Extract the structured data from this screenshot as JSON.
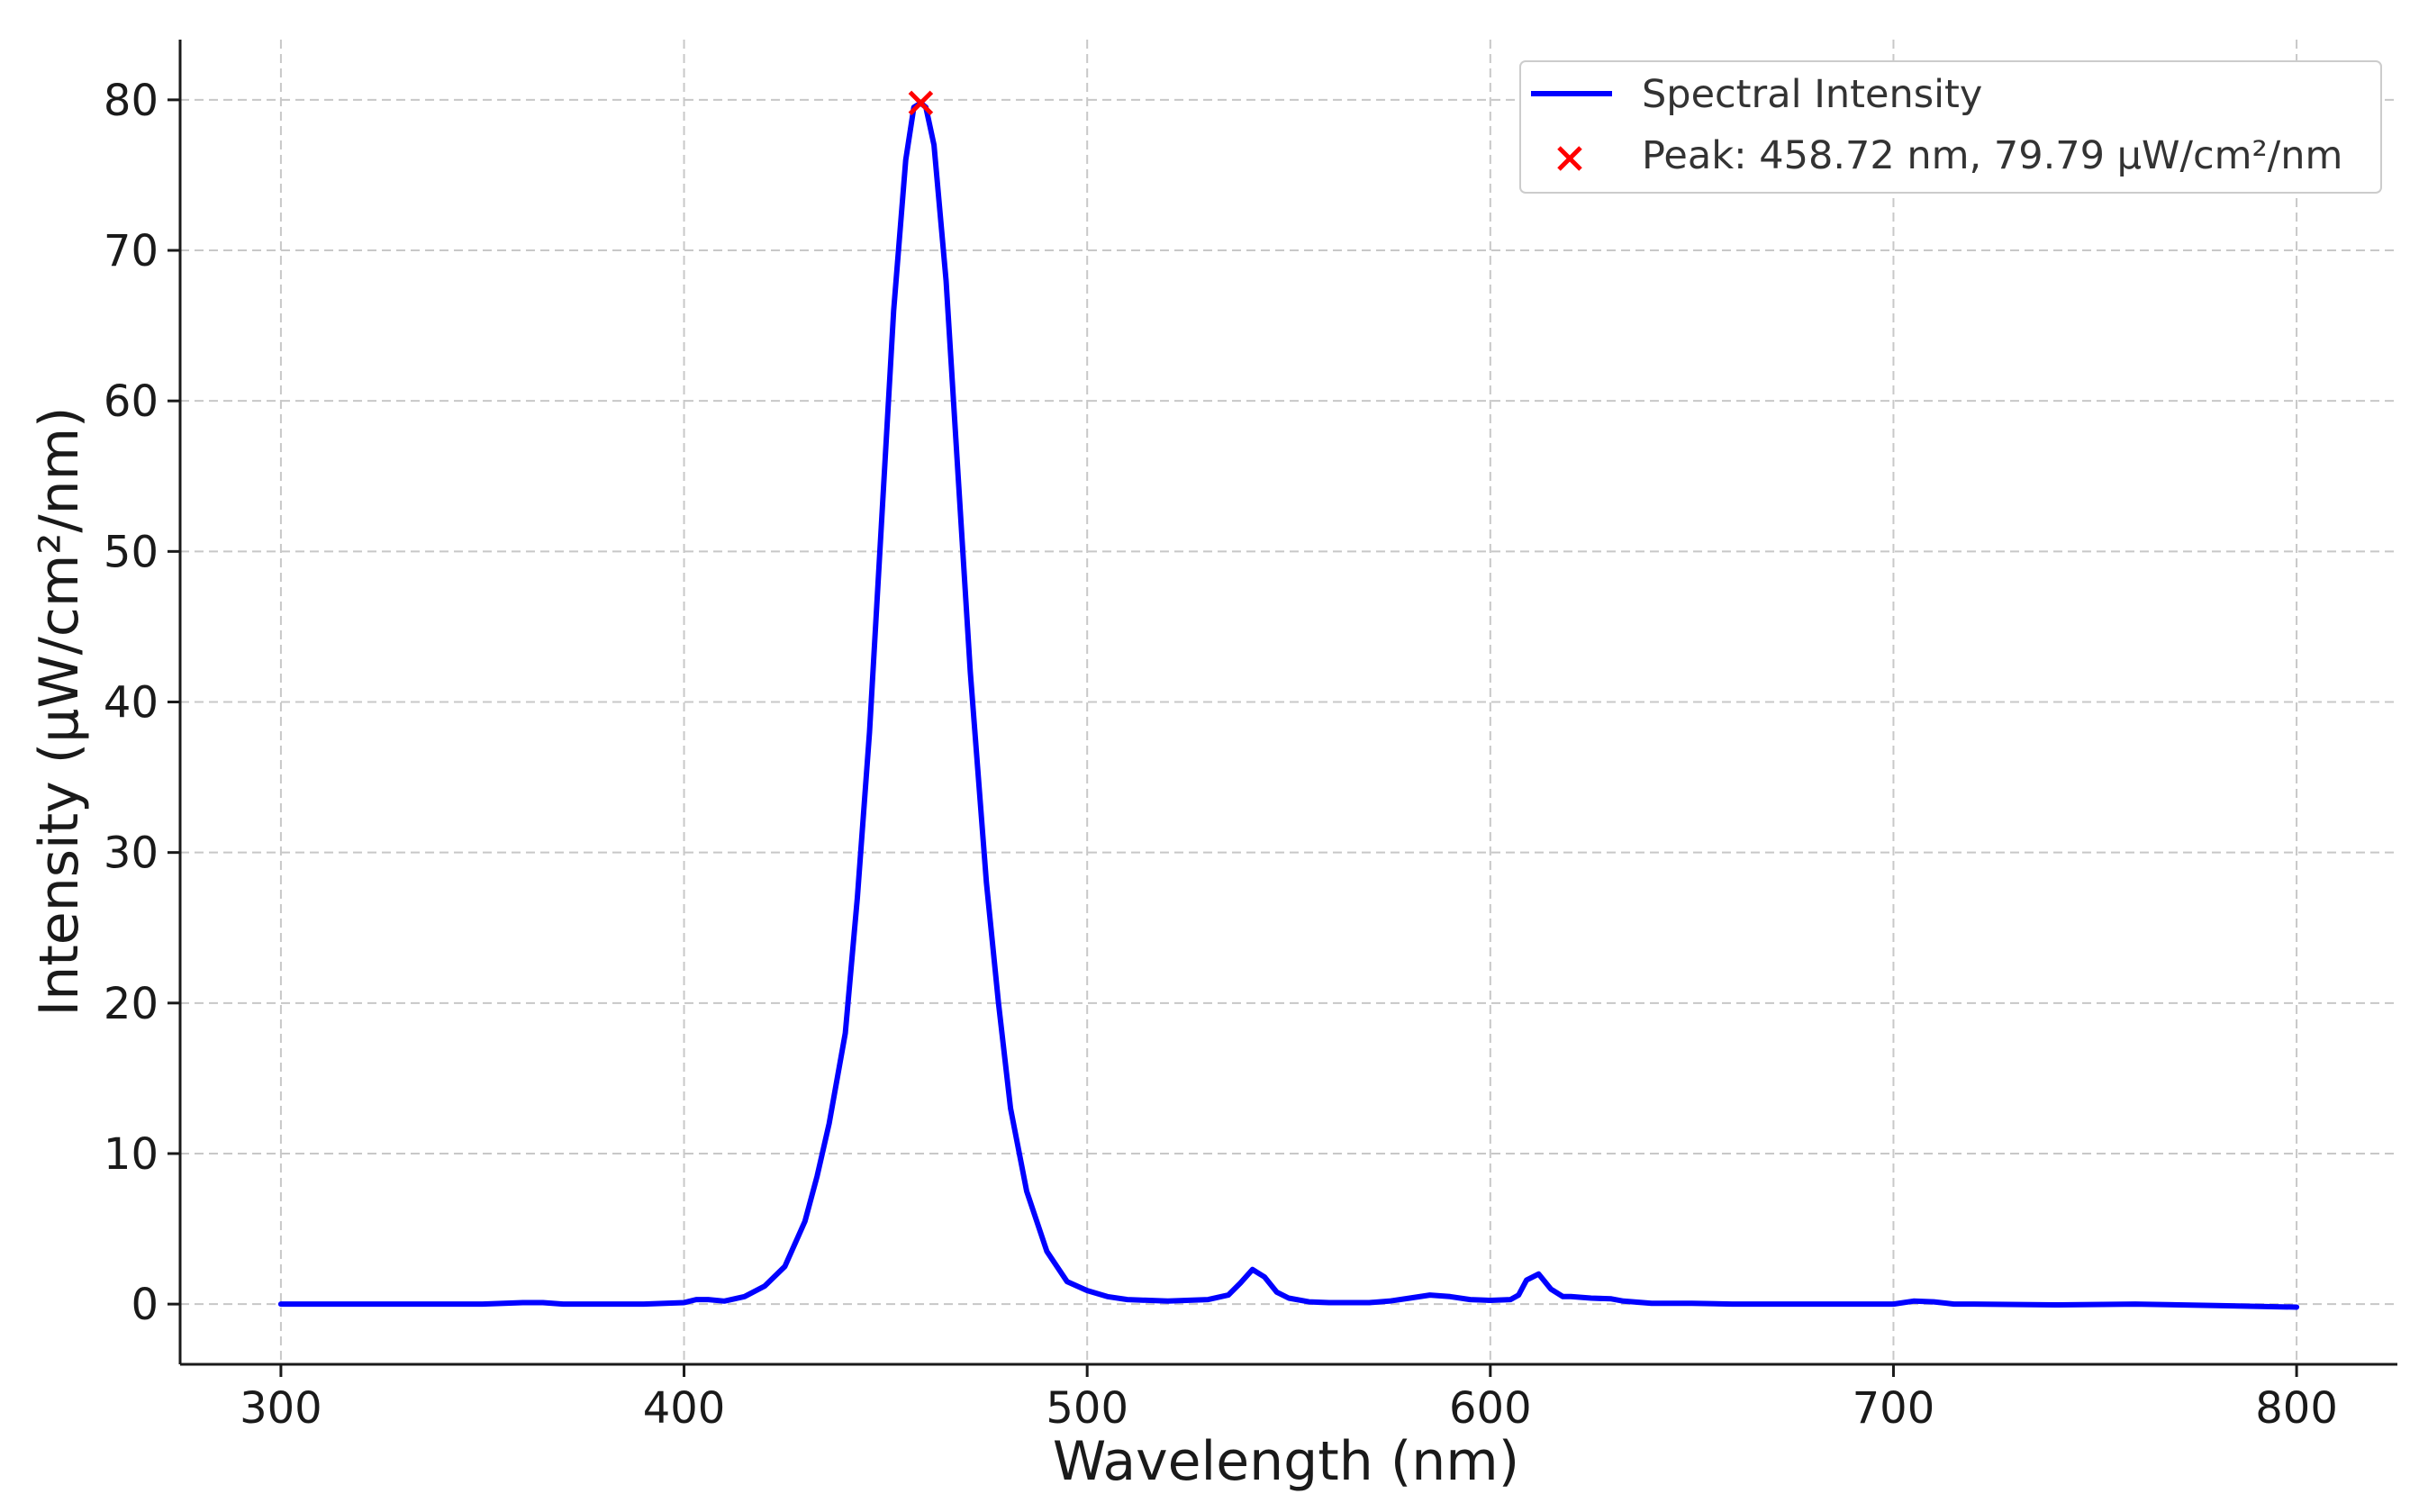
{
  "chart_data": {
    "type": "line",
    "title": "",
    "xlabel": "Wavelength (nm)",
    "ylabel": "Intensity (µW/cm²/nm)",
    "xlim": [
      275,
      825
    ],
    "ylim": [
      -4,
      84
    ],
    "xticks": [
      300,
      400,
      500,
      600,
      700,
      800
    ],
    "yticks": [
      0,
      10,
      20,
      30,
      40,
      50,
      60,
      70,
      80
    ],
    "grid": true,
    "legend_position": "top-right",
    "series": [
      {
        "name": "Spectral Intensity",
        "color": "#0000ff",
        "x": [
          300,
          350,
          360,
          365,
          370,
          390,
          400,
          403,
          406,
          410,
          415,
          420,
          425,
          430,
          433,
          436,
          440,
          443,
          446,
          449,
          452,
          455,
          457,
          458.72,
          460,
          462,
          465,
          468,
          471,
          475,
          478,
          481,
          485,
          490,
          495,
          500,
          505,
          510,
          520,
          530,
          535,
          538,
          541,
          544,
          547,
          550,
          555,
          560,
          570,
          575,
          580,
          585,
          590,
          595,
          600,
          605,
          607,
          609,
          612,
          615,
          618,
          620,
          625,
          630,
          633,
          640,
          650,
          660,
          680,
          700,
          705,
          710,
          715,
          720,
          740,
          760,
          780,
          800
        ],
        "y": [
          0,
          0,
          0.1,
          0.1,
          0,
          0,
          0.1,
          0.3,
          0.3,
          0.2,
          0.5,
          1.2,
          2.5,
          5.5,
          8.5,
          12,
          18,
          27,
          38,
          52,
          66,
          76,
          79.5,
          79.79,
          79.5,
          77,
          68,
          55,
          42,
          28,
          20,
          13,
          7.5,
          3.5,
          1.5,
          0.9,
          0.5,
          0.3,
          0.2,
          0.3,
          0.6,
          1.4,
          2.3,
          1.8,
          0.8,
          0.4,
          0.15,
          0.1,
          0.1,
          0.2,
          0.4,
          0.6,
          0.5,
          0.3,
          0.25,
          0.3,
          0.6,
          1.6,
          2.0,
          1.0,
          0.5,
          0.5,
          0.4,
          0.35,
          0.2,
          0.05,
          0.05,
          0,
          0,
          0,
          0.2,
          0.15,
          0,
          0,
          -0.05,
          0,
          -0.1,
          -0.2
        ]
      }
    ],
    "peak": {
      "name": "Peak: 458.72 nm, 79.79 µW/cm²/nm",
      "x": 458.72,
      "y": 79.79,
      "color": "#ff0000",
      "marker": "x"
    }
  }
}
